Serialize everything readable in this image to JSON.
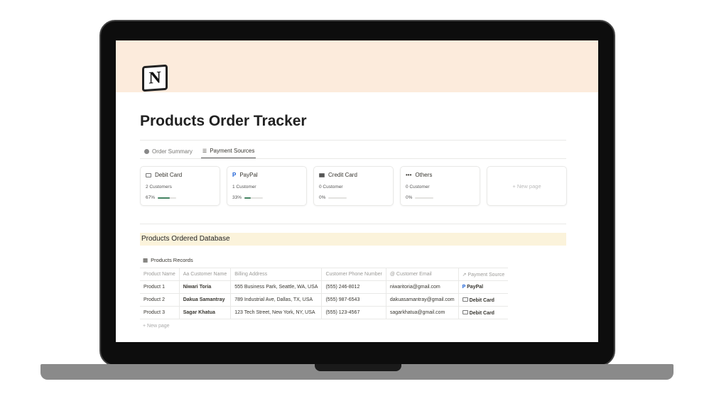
{
  "page": {
    "logo": "N",
    "title": "Products Order Tracker"
  },
  "tabs": [
    {
      "label": "Order Summary",
      "icon": "check-circle-icon"
    },
    {
      "label": "Payment Sources",
      "icon": "list-icon",
      "active": true
    }
  ],
  "cards": [
    {
      "title": "Debit Card",
      "icon": "card-icon",
      "count": "2 Customers",
      "percent_label": "67%",
      "percent": 67
    },
    {
      "title": "PayPal",
      "icon": "paypal-icon",
      "count": "1 Customer",
      "percent_label": "33%",
      "percent": 33
    },
    {
      "title": "Credit Card",
      "icon": "credit-card-icon",
      "count": "0 Customer",
      "percent_label": "0%",
      "percent": 0
    },
    {
      "title": "Others",
      "icon": "ellipsis-icon",
      "count": "0 Customer",
      "percent_label": "0%",
      "percent": 0
    }
  ],
  "new_page": "+ New page",
  "database": {
    "heading": "Products Ordered Database",
    "view": "Products Records",
    "columns": [
      "Product Name",
      "Aa Customer Name",
      "Billing Address",
      "Customer Phone Number",
      "@ Customer Email",
      "↗ Payment Source"
    ],
    "rows": [
      [
        "Product 1",
        "Niwari Toria",
        "555 Business Park, Seattle, WA, USA",
        "(555) 246-8012",
        "niwaritoria@gmail.com",
        "PayPal"
      ],
      [
        "Product 2",
        "Dakua Samantray",
        "789 Industrial Ave, Dallas, TX, USA",
        "(555) 987-6543",
        "dakuasamantray@gmail.com",
        "Debit Card"
      ],
      [
        "Product 3",
        "Sagar Khatua",
        "123 Tech Street, New York, NY, USA",
        "(555) 123-4567",
        "sagarkhatua@gmail.com",
        "Debit Card"
      ]
    ],
    "new_row": "+ New page"
  },
  "colors": {
    "cover": "#fcebdc",
    "heading_bg": "#fbf3db",
    "progress": "#448361"
  }
}
